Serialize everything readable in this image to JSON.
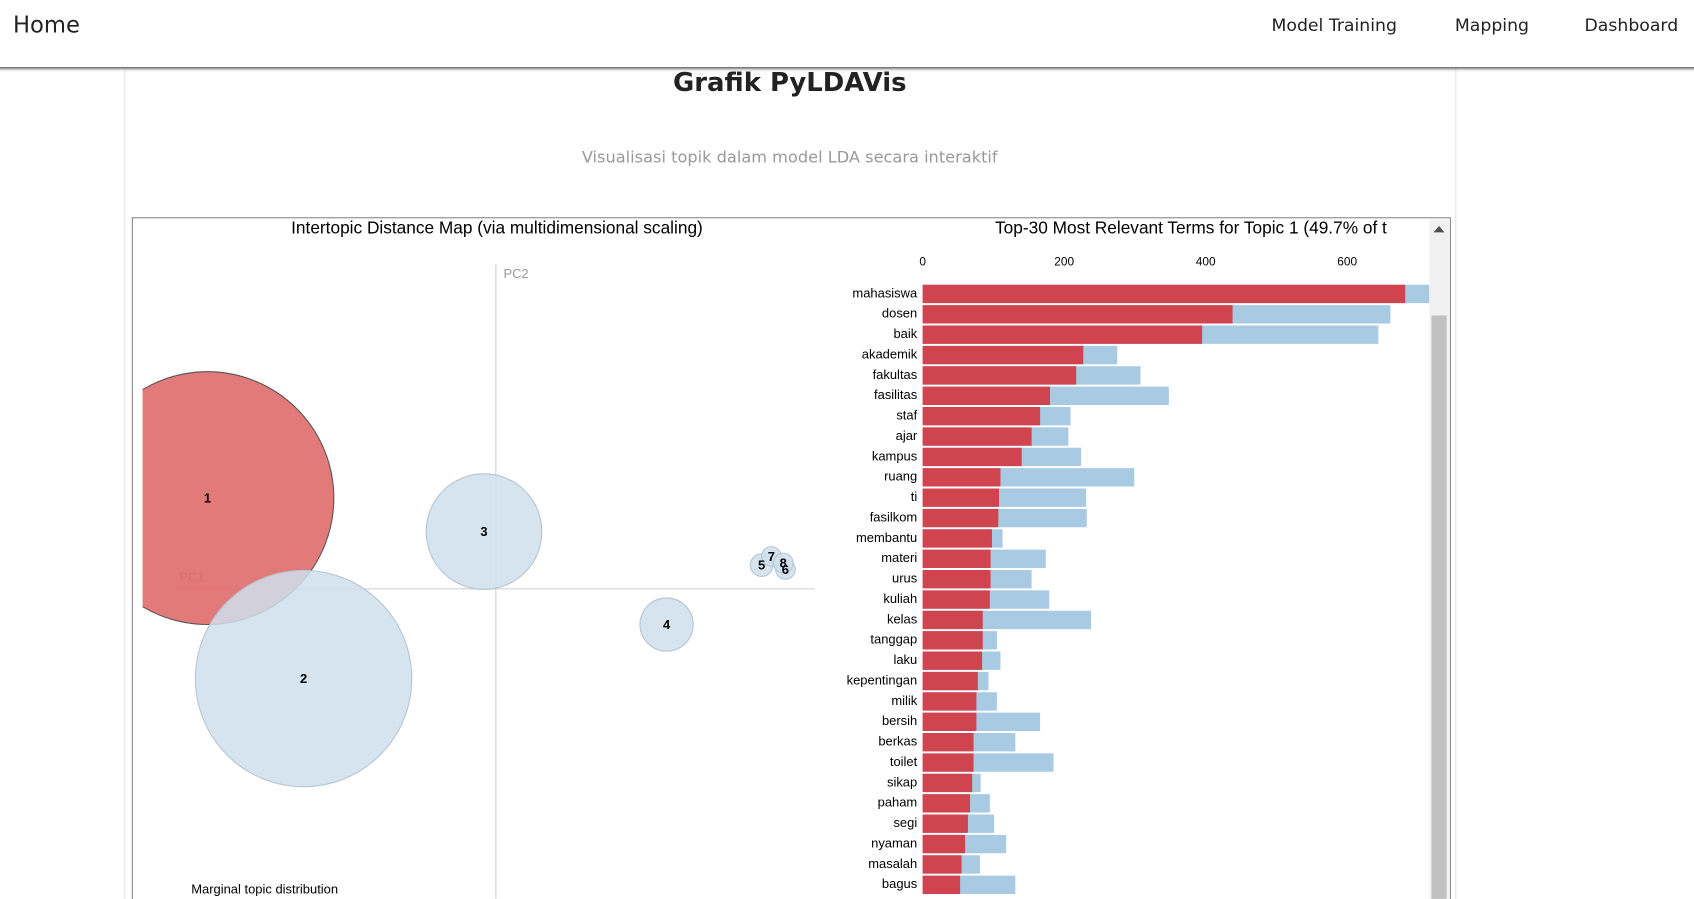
{
  "navbar": {
    "brand": "Home",
    "links": [
      "Model Training",
      "Mapping",
      "Dashboard"
    ]
  },
  "header": {
    "title": "Grafik PyLDAVis",
    "subtitle": "Visualisasi topik dalam model LDA secara interaktif"
  },
  "chart_data": [
    {
      "type": "bubble",
      "title": "Intertopic Distance Map (via multidimensional scaling)",
      "xlabel": "PC1",
      "ylabel": "PC2",
      "size_label": "Marginal topic distribution",
      "labels": [
        "1",
        "2",
        "3",
        "4",
        "5",
        "6",
        "7",
        "8"
      ],
      "x": [
        -2.67,
        -1.78,
        -0.11,
        1.58,
        2.46,
        2.68,
        2.55,
        2.66
      ],
      "y": [
        0.84,
        -0.83,
        0.53,
        -0.33,
        0.22,
        0.18,
        0.3,
        0.24
      ],
      "sizes": [
        49.7,
        36.4,
        10.4,
        2.2,
        0.4,
        0.3,
        0.3,
        0.3
      ],
      "colors": [
        "#e06b6c",
        "#cfdfec",
        "#cfdfec",
        "#cfdfec",
        "#cfdfec",
        "#cfdfec",
        "#cfdfec",
        "#cfdfec"
      ],
      "xlim": [
        -3.27,
        2.95
      ],
      "ylim": [
        -2.87,
        3.0
      ]
    },
    {
      "type": "bar",
      "orientation": "horizontal",
      "title": "Top-30 Most Relevant Terms for Topic 1 (49.7% of t",
      "categories": [
        "mahasiswa",
        "dosen",
        "baik",
        "akademik",
        "fakultas",
        "fasilitas",
        "staf",
        "ajar",
        "kampus",
        "ruang",
        "ti",
        "fasilkom",
        "membantu",
        "materi",
        "urus",
        "kuliah",
        "kelas",
        "tanggap",
        "laku",
        "kepentingan",
        "milik",
        "bersih",
        "berkas",
        "toilet",
        "sikap",
        "paham",
        "segi",
        "nyaman",
        "masalah",
        "bagus"
      ],
      "series": [
        {
          "color": "#cf444e",
          "values": [
            682,
            438,
            395,
            227,
            217,
            180,
            166,
            154,
            140,
            110,
            108,
            107,
            98,
            96,
            96,
            95,
            85,
            85,
            84,
            78,
            76,
            76,
            72,
            72,
            70,
            67,
            64,
            60,
            55,
            53
          ]
        },
        {
          "color": "#a8cae2",
          "values": [
            716,
            661,
            644,
            275,
            308,
            348,
            209,
            206,
            224,
            299,
            231,
            232,
            113,
            174,
            154,
            179,
            238,
            105,
            110,
            93,
            105,
            166,
            131,
            185,
            82,
            95,
            101,
            118,
            81,
            131
          ]
        }
      ],
      "xlim": [
        0,
        716
      ],
      "xticks": [
        0,
        200,
        400,
        600
      ]
    }
  ]
}
